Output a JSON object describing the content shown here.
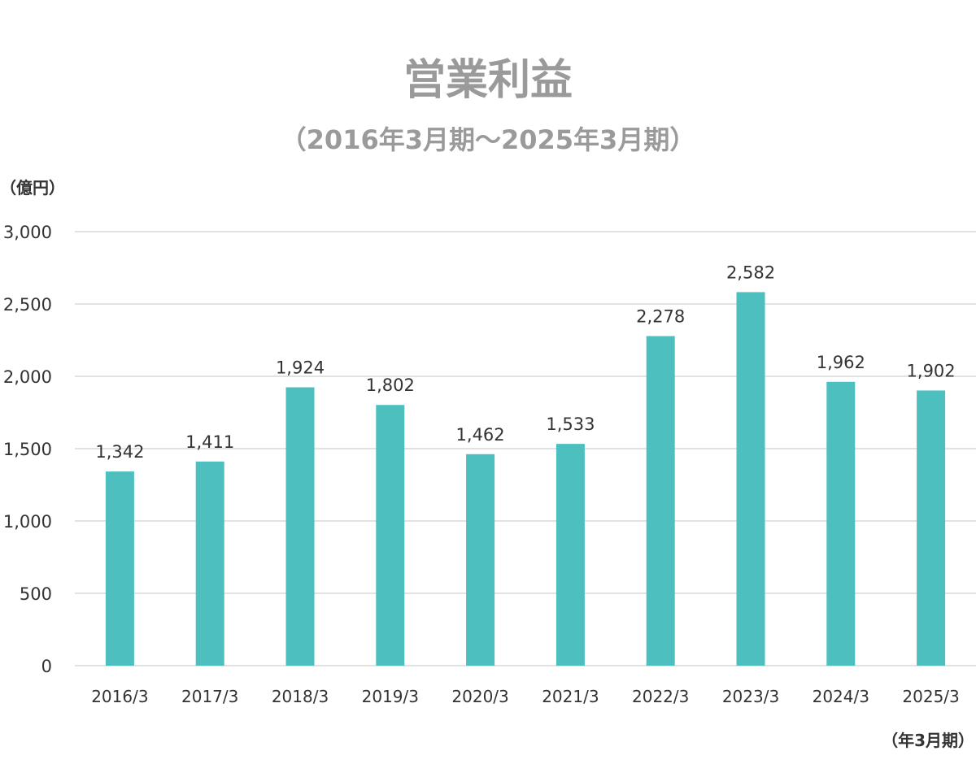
{
  "chart_data": {
    "type": "bar",
    "title": "営業利益",
    "subtitle": "（2016年3月期～2025年3月期）",
    "ylabel": "（億円）",
    "xlabel": "（年3月期）",
    "ylim": [
      0,
      3000
    ],
    "yticks": [
      0,
      500,
      1000,
      1500,
      2000,
      2500,
      3000
    ],
    "ytick_labels": [
      "0",
      "500",
      "1,000",
      "1,500",
      "2,000",
      "2,500",
      "3,000"
    ],
    "grid": true,
    "categories": [
      "2016/3",
      "2017/3",
      "2018/3",
      "2019/3",
      "2020/3",
      "2021/3",
      "2022/3",
      "2023/3",
      "2024/3",
      "2025/3"
    ],
    "values": [
      1342,
      1411,
      1924,
      1802,
      1462,
      1533,
      2278,
      2582,
      1962,
      1902
    ],
    "value_labels": [
      "1,342",
      "1,411",
      "1,924",
      "1,802",
      "1,462",
      "1,533",
      "2,278",
      "2,582",
      "1,962",
      "1,902"
    ],
    "bar_color": "#4dbfbf",
    "grid_color": "#d9d9d9",
    "title_color": "#9a9a9a"
  }
}
